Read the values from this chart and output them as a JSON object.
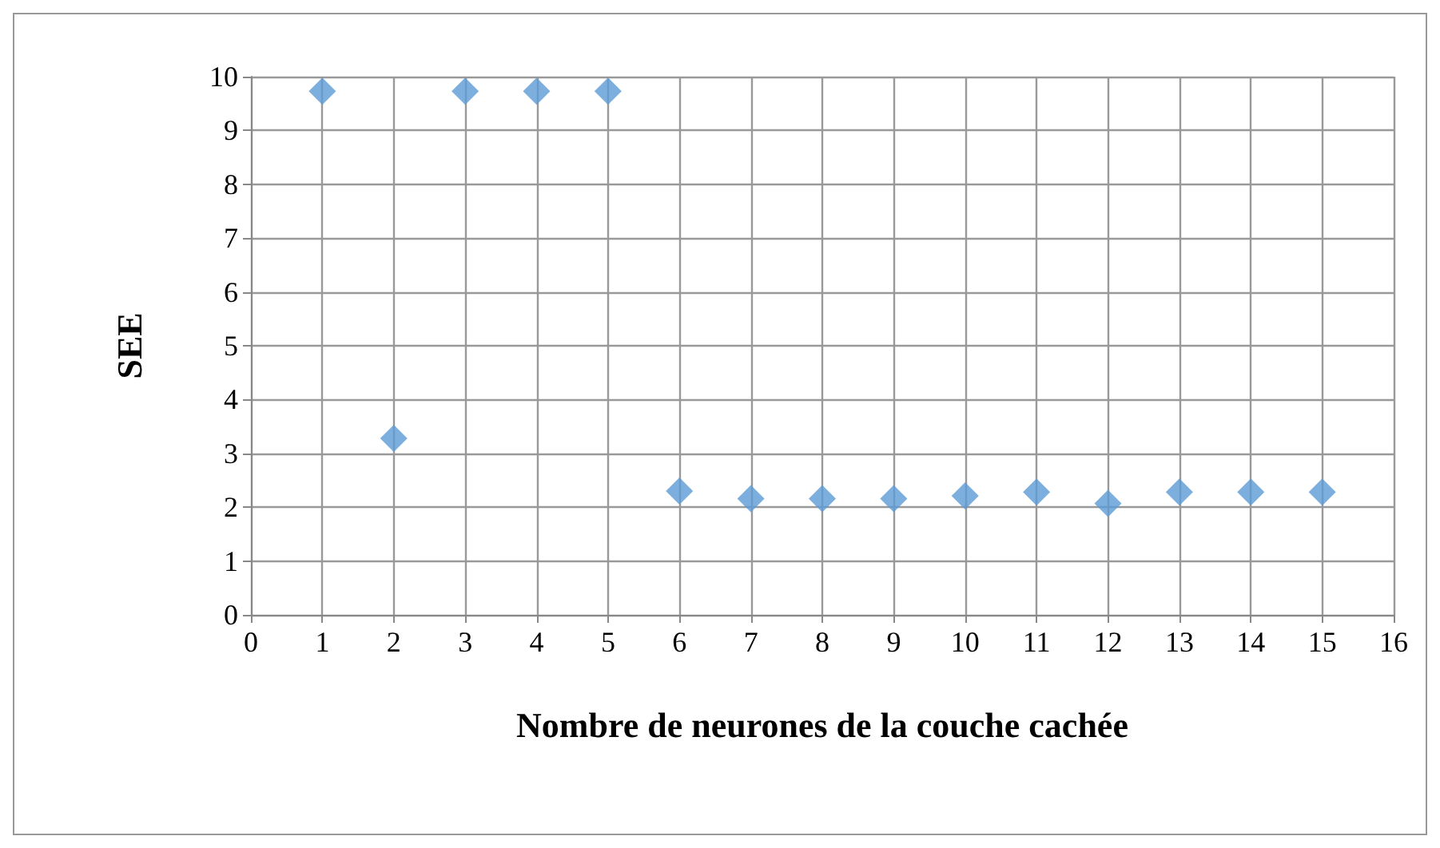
{
  "chart_data": {
    "type": "scatter",
    "xlabel": "Nombre de neurones de la couche cachée",
    "ylabel": "SEE",
    "x": [
      1,
      2,
      3,
      4,
      5,
      6,
      7,
      8,
      9,
      10,
      11,
      12,
      13,
      14,
      15
    ],
    "series": [
      {
        "color": "#5b9bd5",
        "values": [
          9.73,
          3.28,
          9.73,
          9.73,
          9.73,
          2.3,
          2.16,
          2.16,
          2.16,
          2.21,
          2.28,
          2.07,
          2.28,
          2.28,
          2.28
        ]
      }
    ],
    "xlim": [
      0,
      16
    ],
    "xticks": [
      0,
      1,
      2,
      3,
      4,
      5,
      6,
      7,
      8,
      9,
      10,
      11,
      12,
      13,
      14,
      15,
      16
    ],
    "ylim": [
      0,
      10
    ],
    "yticks": [
      0,
      1,
      2,
      3,
      4,
      5,
      6,
      7,
      8,
      9,
      10
    ],
    "grid": true,
    "marker": "diamond"
  }
}
